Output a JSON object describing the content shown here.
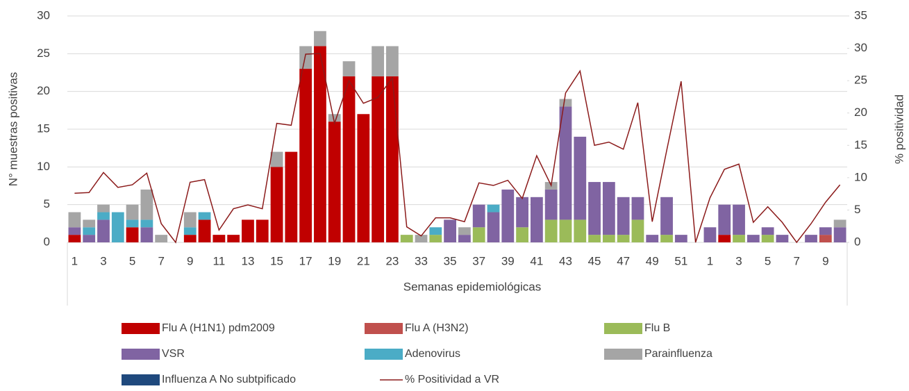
{
  "chart_data": {
    "type": "bar",
    "stacked": true,
    "y_axis_label": "N° muestras positivas",
    "y2_axis_label": "% positividad",
    "x_axis_label": "Semanas epidemiológicas",
    "categories": [
      "1",
      null,
      "3",
      null,
      "5",
      null,
      "7",
      null,
      "9",
      null,
      "11",
      null,
      "13",
      null,
      "15",
      null,
      "17",
      null,
      "19",
      null,
      "21",
      null,
      "23",
      null,
      "33",
      null,
      "35",
      null,
      "37",
      null,
      "39",
      null,
      "41",
      null,
      "43",
      null,
      "45",
      null,
      "47",
      null,
      "49",
      null,
      "51",
      null,
      "1",
      null,
      "3",
      null,
      "5",
      null,
      "7",
      null,
      "9",
      null
    ],
    "ylim": [
      0,
      30
    ],
    "yticks": [
      0,
      5,
      10,
      15,
      20,
      25,
      30
    ],
    "y2lim": [
      0,
      35
    ],
    "y2ticks": [
      0,
      5,
      10,
      15,
      20,
      25,
      30,
      35
    ],
    "grid": true,
    "series": [
      {
        "name": "Flu A (H1N1) pdm2009",
        "color": "#c00000",
        "values": [
          1,
          0,
          0,
          0,
          2,
          0,
          0,
          0,
          1,
          3,
          1,
          1,
          3,
          3,
          10,
          12,
          23,
          26,
          16,
          22,
          17,
          22,
          22,
          0,
          0,
          0,
          0,
          0,
          0,
          0,
          0,
          0,
          0,
          0,
          0,
          0,
          0,
          0,
          0,
          0,
          0,
          0,
          0,
          0,
          0,
          1,
          0,
          0,
          0,
          0,
          0,
          0,
          0,
          0
        ]
      },
      {
        "name": "Flu A (H3N2)",
        "color": "#c0504d",
        "values": [
          0,
          0,
          0,
          0,
          0,
          0,
          0,
          0,
          0,
          0,
          0,
          0,
          0,
          0,
          0,
          0,
          0,
          0,
          0,
          0,
          0,
          0,
          0,
          0,
          0,
          0,
          0,
          0,
          0,
          0,
          0,
          0,
          0,
          0,
          0,
          0,
          0,
          0,
          0,
          0,
          0,
          0,
          0,
          0,
          0,
          0,
          0,
          0,
          0,
          0,
          0,
          0,
          1,
          0
        ]
      },
      {
        "name": "Flu B",
        "color": "#9bbb59",
        "values": [
          0,
          0,
          0,
          0,
          0,
          0,
          0,
          0,
          0,
          0,
          0,
          0,
          0,
          0,
          0,
          0,
          0,
          0,
          0,
          0,
          0,
          0,
          0,
          1,
          0,
          1,
          0,
          0,
          2,
          0,
          0,
          2,
          0,
          3,
          3,
          3,
          1,
          1,
          1,
          3,
          0,
          1,
          0,
          0,
          0,
          0,
          1,
          0,
          1,
          0,
          0,
          0,
          0,
          0
        ]
      },
      {
        "name": "VSR",
        "color": "#8064a2",
        "values": [
          1,
          1,
          3,
          0,
          0,
          2,
          0,
          0,
          0,
          0,
          0,
          0,
          0,
          0,
          0,
          0,
          0,
          0,
          0,
          0,
          0,
          0,
          0,
          0,
          0,
          0,
          3,
          1,
          3,
          4,
          7,
          4,
          6,
          4,
          15,
          11,
          7,
          7,
          5,
          3,
          1,
          5,
          1,
          0,
          2,
          4,
          4,
          1,
          1,
          1,
          0,
          1,
          1,
          2
        ]
      },
      {
        "name": "Adenovirus",
        "color": "#4bacc6",
        "values": [
          0,
          1,
          1,
          4,
          1,
          1,
          0,
          0,
          1,
          1,
          0,
          0,
          0,
          0,
          0,
          0,
          0,
          0,
          0,
          0,
          0,
          0,
          0,
          0,
          0,
          1,
          0,
          0,
          0,
          1,
          0,
          0,
          0,
          0,
          0,
          0,
          0,
          0,
          0,
          0,
          0,
          0,
          0,
          0,
          0,
          0,
          0,
          0,
          0,
          0,
          0,
          0,
          0,
          0
        ]
      },
      {
        "name": "Parainfluenza",
        "color": "#a5a5a5",
        "values": [
          2,
          1,
          1,
          0,
          2,
          4,
          1,
          0,
          2,
          0,
          0,
          0,
          0,
          0,
          2,
          0,
          3,
          2,
          1,
          2,
          0,
          4,
          4,
          0,
          1,
          0,
          0,
          1,
          0,
          0,
          0,
          0,
          0,
          1,
          1,
          0,
          0,
          0,
          0,
          0,
          0,
          0,
          0,
          0,
          0,
          0,
          0,
          0,
          0,
          0,
          0,
          0,
          0,
          1
        ]
      },
      {
        "name": "Influenza A No subtpificado",
        "color": "#1f497d",
        "values": [
          0,
          0,
          0,
          0,
          0,
          0,
          0,
          0,
          0,
          0,
          0,
          0,
          0,
          0,
          0,
          0,
          0,
          0,
          0,
          0,
          0,
          0,
          0,
          0,
          0,
          0,
          0,
          0,
          0,
          0,
          0,
          0,
          0,
          0,
          0,
          0,
          0,
          0,
          0,
          0,
          0,
          0,
          0,
          0,
          0,
          0,
          0,
          0,
          0,
          0,
          0,
          0,
          0,
          0
        ]
      },
      {
        "name": "% Positividad a VR",
        "color": "#8b1a1a",
        "type": "line",
        "axis": "y2",
        "values": [
          7.6,
          7.7,
          10.8,
          8.5,
          8.9,
          10.7,
          2.9,
          0,
          9.3,
          9.7,
          1.9,
          5.2,
          5.8,
          5.2,
          18.4,
          18.1,
          29.1,
          29.2,
          18.4,
          25.0,
          21.5,
          22.4,
          25.4,
          2.4,
          1.0,
          3.8,
          3.8,
          3.2,
          9.2,
          8.8,
          9.6,
          6.8,
          13.4,
          8.8,
          23.1,
          26.5,
          15.0,
          15.5,
          14.4,
          21.6,
          3.2,
          14.2,
          24.9,
          0,
          6.9,
          11.3,
          12.1,
          3.1,
          5.5,
          3.1,
          0,
          2.9,
          6.2,
          8.9
        ]
      }
    ]
  }
}
